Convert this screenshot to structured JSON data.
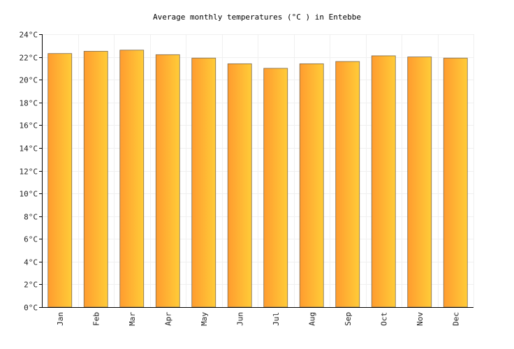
{
  "chart_data": {
    "type": "bar",
    "title": "Average monthly temperatures (°C ) in Entebbe",
    "xlabel": "",
    "ylabel": "",
    "categories": [
      "Jan",
      "Feb",
      "Mar",
      "Apr",
      "May",
      "Jun",
      "Jul",
      "Aug",
      "Sep",
      "Oct",
      "Nov",
      "Dec"
    ],
    "values": [
      22.3,
      22.5,
      22.6,
      22.2,
      21.9,
      21.4,
      21.0,
      21.4,
      21.6,
      22.1,
      22.0,
      21.9
    ],
    "ylim": [
      0,
      24
    ],
    "y_ticks": [
      0,
      2,
      4,
      6,
      8,
      10,
      12,
      14,
      16,
      18,
      20,
      22,
      24
    ],
    "y_tick_labels": [
      "0°C",
      "2°C",
      "4°C",
      "6°C",
      "8°C",
      "10°C",
      "12°C",
      "14°C",
      "16°C",
      "18°C",
      "20°C",
      "22°C",
      "24°C"
    ],
    "grid": true,
    "legend": "none",
    "colors": {
      "bar_gradient_start": "#ff9c2f",
      "bar_gradient_end": "#ffcc38",
      "bar_border": "#7a6a52",
      "grid": "#f0f0f0",
      "axis": "#000000",
      "background": "#ffffff"
    }
  }
}
